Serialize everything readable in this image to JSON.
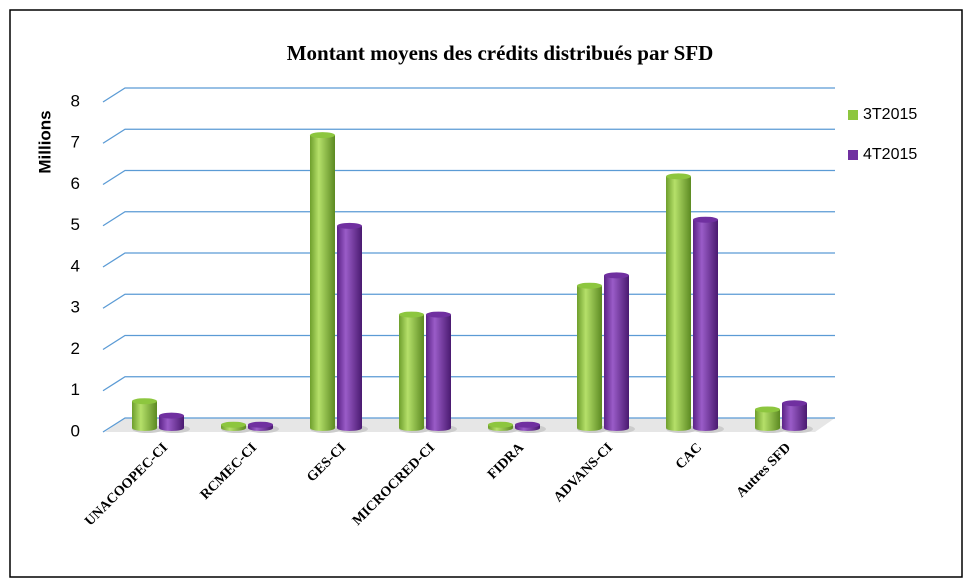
{
  "chart_data": {
    "type": "bar",
    "title": "Montant moyens des crédits distribués par SFD",
    "y_label": "Millions",
    "categories": [
      "UNACOOPEC-CI",
      "RCMEC-CI",
      "GES-CI",
      "MICROCRED-CI",
      "FIDRA",
      "ADVANS-CI",
      "CAC",
      "Autres SFD"
    ],
    "series": [
      {
        "name": "3T2015",
        "color": "#8dc63f",
        "values": [
          0.65,
          0.08,
          7.1,
          2.75,
          0.08,
          3.45,
          6.1,
          0.45
        ]
      },
      {
        "name": "4T2015",
        "color": "#7030a0",
        "values": [
          0.3,
          0.08,
          4.9,
          2.75,
          0.08,
          3.7,
          5.05,
          0.6
        ]
      }
    ],
    "ylim": [
      0,
      8
    ],
    "yticks": [
      0,
      1,
      2,
      3,
      4,
      5,
      6,
      7,
      8
    ],
    "grid": true,
    "legend": "right"
  }
}
